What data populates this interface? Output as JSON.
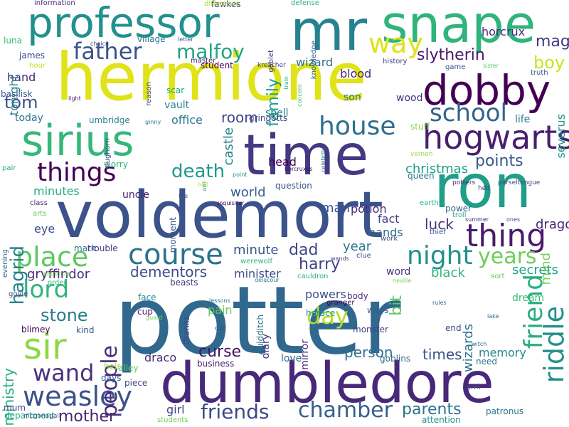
{
  "palette": {
    "background": "#ffffff"
  },
  "words": [
    {
      "text": "potter",
      "color": "#31688e"
    },
    {
      "text": "hermione",
      "color": "#dfe318"
    },
    {
      "text": "voldemort",
      "color": "#3b528b"
    },
    {
      "text": "dumbledore",
      "color": "#482878"
    },
    {
      "text": "mr",
      "color": "#26828e"
    },
    {
      "text": "snape",
      "color": "#2fb47c"
    },
    {
      "text": "ron",
      "color": "#1f9e89"
    },
    {
      "text": "time",
      "color": "#443983"
    },
    {
      "text": "professor",
      "color": "#21918c"
    },
    {
      "text": "sirius",
      "color": "#35b779"
    },
    {
      "text": "dobby",
      "color": "#440154"
    },
    {
      "text": "hogwarts",
      "color": "#481f70"
    },
    {
      "text": "sir",
      "color": "#8fd744"
    },
    {
      "text": "course",
      "color": "#2c728e"
    },
    {
      "text": "things",
      "color": "#440154"
    },
    {
      "text": "place",
      "color": "#5ec962"
    },
    {
      "text": "night",
      "color": "#21918c"
    },
    {
      "text": "thing",
      "color": "#481a6c"
    },
    {
      "text": "weasley",
      "color": "#3b528b"
    },
    {
      "text": "wand",
      "color": "#46327e"
    },
    {
      "text": "house",
      "color": "#2e6f8e"
    },
    {
      "text": "school",
      "color": "#33638d"
    },
    {
      "text": "riddle",
      "color": "#21918c"
    },
    {
      "text": "friend",
      "color": "#29af7f"
    },
    {
      "text": "lord",
      "color": "#2fb47c"
    },
    {
      "text": "father",
      "color": "#3b528b"
    },
    {
      "text": "way",
      "color": "#dfe318"
    },
    {
      "text": "chamber",
      "color": "#355f8d"
    },
    {
      "text": "friends",
      "color": "#3e4989"
    },
    {
      "text": "people",
      "color": "#472c7a"
    },
    {
      "text": "day",
      "color": "#b5de2b"
    },
    {
      "text": "years",
      "color": "#6ece58"
    },
    {
      "text": "malfoy",
      "color": "#20a486"
    },
    {
      "text": "death",
      "color": "#1f9a8a"
    },
    {
      "text": "hagrid",
      "color": "#25838e"
    },
    {
      "text": "stone",
      "color": "#287c8e"
    },
    {
      "text": "tom",
      "color": "#3b528b"
    },
    {
      "text": "boy",
      "color": "#cde11d"
    },
    {
      "text": "dad",
      "color": "#3f4788"
    },
    {
      "text": "curse",
      "color": "#471164"
    },
    {
      "text": "parents",
      "color": "#2c728e"
    },
    {
      "text": "mother",
      "color": "#482173"
    },
    {
      "text": "slytherin",
      "color": "#48186a"
    },
    {
      "text": "points",
      "color": "#38598c"
    },
    {
      "text": "magic",
      "color": "#453781"
    },
    {
      "text": "harry",
      "color": "#424086"
    },
    {
      "text": "family",
      "color": "#1f9e89"
    },
    {
      "text": "room",
      "color": "#414487"
    },
    {
      "text": "times",
      "color": "#3b528b"
    },
    {
      "text": "bit",
      "color": "#5ec962"
    },
    {
      "text": "person",
      "color": "#2d708e"
    },
    {
      "text": "dementors",
      "color": "#3e4c8a"
    },
    {
      "text": "luck",
      "color": "#46337f"
    },
    {
      "text": "ministry",
      "color": "#27ad81"
    },
    {
      "text": "christmas",
      "color": "#1fa088"
    },
    {
      "text": "wizards",
      "color": "#2c738e"
    },
    {
      "text": "dragon",
      "color": "#482475"
    },
    {
      "text": "man",
      "color": "#39558c"
    },
    {
      "text": "year",
      "color": "#2a788e"
    },
    {
      "text": "minute",
      "color": "#3a548c"
    },
    {
      "text": "gryffindor",
      "color": "#472d7b"
    },
    {
      "text": "world",
      "color": "#34618d"
    },
    {
      "text": "castle",
      "color": "#25848e"
    },
    {
      "text": "mind",
      "color": "#7ad151"
    },
    {
      "text": "black",
      "color": "#31b57b"
    },
    {
      "text": "secrets",
      "color": "#1fa287"
    },
    {
      "text": "minutes",
      "color": "#28ae80"
    },
    {
      "text": "blood",
      "color": "#482576"
    },
    {
      "text": "fact",
      "color": "#433e85"
    },
    {
      "text": "minister",
      "color": "#3d4e8a"
    },
    {
      "text": "head",
      "color": "#440154"
    },
    {
      "text": "office",
      "color": "#2a768e"
    },
    {
      "text": "potion",
      "color": "#482979"
    },
    {
      "text": "hands",
      "color": "#31688e"
    },
    {
      "text": "pain",
      "color": "#65cb5e"
    },
    {
      "text": "memory",
      "color": "#24878e"
    },
    {
      "text": "severus",
      "color": "#1f968b"
    },
    {
      "text": "girl",
      "color": "#404588"
    },
    {
      "text": "draco",
      "color": "#472f7d"
    },
    {
      "text": "horcrux",
      "color": "#472a7a"
    },
    {
      "text": "wizard",
      "color": "#2e6e8e"
    },
    {
      "text": "hand",
      "color": "#482677"
    },
    {
      "text": "tonight",
      "color": "#25858e"
    },
    {
      "text": "eye",
      "color": "#3c4f8a"
    },
    {
      "text": "powers",
      "color": "#3d4d8a"
    },
    {
      "text": "dream",
      "color": "#3dbc74"
    },
    {
      "text": "diary",
      "color": "#453882"
    },
    {
      "text": "mirror",
      "color": "#46307e"
    },
    {
      "text": "wood",
      "color": "#46327e"
    },
    {
      "text": "son",
      "color": "#2b748e"
    },
    {
      "text": "spell",
      "color": "#27808e"
    },
    {
      "text": "today",
      "color": "#2b758e"
    },
    {
      "text": "stuff",
      "color": "#86d549"
    },
    {
      "text": "life",
      "color": "#2a788e"
    },
    {
      "text": "quidditch",
      "color": "#2c728e"
    },
    {
      "text": "uncle",
      "color": "#482071"
    },
    {
      "text": "love",
      "color": "#31688e"
    },
    {
      "text": "word",
      "color": "#472e7c"
    },
    {
      "text": "vault",
      "color": "#26818e"
    },
    {
      "text": "gringotts",
      "color": "#414487"
    },
    {
      "text": "scar",
      "color": "#22a785"
    },
    {
      "text": "james",
      "color": "#3f4889"
    },
    {
      "text": "luna",
      "color": "#38b977"
    },
    {
      "text": "village",
      "color": "#2b758e"
    },
    {
      "text": "umbridge",
      "color": "#26818e"
    },
    {
      "text": "question",
      "color": "#3a548c"
    },
    {
      "text": "fawkes",
      "color": "#453581"
    },
    {
      "text": "basilisk",
      "color": "#3c508b"
    },
    {
      "text": "worry",
      "color": "#2fb47c"
    },
    {
      "text": "moment",
      "color": "#39568c"
    },
    {
      "text": "mark",
      "color": "#2b758e"
    },
    {
      "text": "trouble",
      "color": "#46337f"
    },
    {
      "text": "cup",
      "color": "#481769"
    },
    {
      "text": "face",
      "color": "#24878e"
    },
    {
      "text": "kind",
      "color": "#3b528b"
    },
    {
      "text": "blimey",
      "color": "#440154"
    },
    {
      "text": "beasts",
      "color": "#453882"
    },
    {
      "text": "thanks",
      "color": "#3e4a89"
    },
    {
      "text": "monster",
      "color": "#424086"
    },
    {
      "text": "piece",
      "color": "#3f4889"
    },
    {
      "text": "heir",
      "color": "#9dd93b"
    },
    {
      "text": "alley",
      "color": "#5ec962"
    },
    {
      "text": "days",
      "color": "#33638d"
    },
    {
      "text": "business",
      "color": "#48196b"
    },
    {
      "text": "goblins",
      "color": "#2f6b8e"
    },
    {
      "text": "need",
      "color": "#2a788e"
    },
    {
      "text": "end",
      "color": "#414487"
    },
    {
      "text": "body",
      "color": "#46307e"
    },
    {
      "text": "ways",
      "color": "#38598c"
    },
    {
      "text": "horace",
      "color": "#1f9a8a"
    },
    {
      "text": "patronus",
      "color": "#2a788e"
    },
    {
      "text": "attention",
      "color": "#228d8d"
    },
    {
      "text": "work",
      "color": "#3b528b"
    },
    {
      "text": "earth",
      "color": "#37b878"
    },
    {
      "text": "queen",
      "color": "#2a788e"
    },
    {
      "text": "power",
      "color": "#32648e"
    },
    {
      "text": "troll",
      "color": "#29af7f"
    },
    {
      "text": "thief",
      "color": "#3b528b"
    },
    {
      "text": "department",
      "color": "#25ab82"
    },
    {
      "text": "mum",
      "color": "#404688"
    },
    {
      "text": "information",
      "color": "#482878"
    },
    {
      "text": "difference",
      "color": "#a5db36"
    },
    {
      "text": "defense",
      "color": "#2fb47c"
    },
    {
      "text": "knowledge",
      "color": "#33638d"
    },
    {
      "text": "master",
      "color": "#482173"
    },
    {
      "text": "student",
      "color": "#440154"
    },
    {
      "text": "goblet",
      "color": "#46307e"
    },
    {
      "text": "hour",
      "color": "#bddf26"
    },
    {
      "text": "history",
      "color": "#414487"
    },
    {
      "text": "kreacher",
      "color": "#3e4989"
    },
    {
      "text": "game",
      "color": "#38598c"
    },
    {
      "text": "truth",
      "color": "#39558c"
    },
    {
      "text": "sister",
      "color": "#54c568"
    },
    {
      "text": "slughorn",
      "color": "#3b528b"
    },
    {
      "text": "arts",
      "color": "#5ec962"
    },
    {
      "text": "class",
      "color": "#46337f"
    },
    {
      "text": "order",
      "color": "#37b878"
    },
    {
      "text": "evening",
      "color": "#31688e"
    },
    {
      "text": "goyle",
      "color": "#3e4a89"
    },
    {
      "text": "pair",
      "color": "#25ab82"
    },
    {
      "text": "fire",
      "color": "#3b528b"
    },
    {
      "text": "owl",
      "color": "#1fa187"
    },
    {
      "text": "bed",
      "color": "#b5de2b"
    },
    {
      "text": "inquisitor",
      "color": "#440154"
    },
    {
      "text": "point",
      "color": "#1f958b"
    },
    {
      "text": "horcruxes",
      "color": "#46085c"
    },
    {
      "text": "celebrity",
      "color": "#2d718e"
    },
    {
      "text": "concern",
      "color": "#4ac16d"
    },
    {
      "text": "train",
      "color": "#25ab82"
    },
    {
      "text": "reason",
      "color": "#3e4989"
    },
    {
      "text": "light",
      "color": "#482475"
    },
    {
      "text": "ginny",
      "color": "#287d8e"
    },
    {
      "text": "letter",
      "color": "#3b528b"
    },
    {
      "text": "choice",
      "color": "#433e85"
    },
    {
      "text": "parseltongue",
      "color": "#414487"
    },
    {
      "text": "hell",
      "color": "#46327e"
    },
    {
      "text": "potters",
      "color": "#482677"
    },
    {
      "text": "vernon",
      "color": "#90d743"
    },
    {
      "text": "summer",
      "color": "#482475"
    },
    {
      "text": "ones",
      "color": "#3f4788"
    },
    {
      "text": "clue",
      "color": "#3e4a89"
    },
    {
      "text": "wands",
      "color": "#453781"
    },
    {
      "text": "patronum",
      "color": "#7fd34e"
    },
    {
      "text": "cauldron",
      "color": "#2ab07f"
    },
    {
      "text": "delacour",
      "color": "#26828e"
    },
    {
      "text": "werewolf",
      "color": "#2fb47c"
    },
    {
      "text": "sort",
      "color": "#5ec962"
    },
    {
      "text": "neville",
      "color": "#75d054"
    },
    {
      "text": "rules",
      "color": "#2c718e"
    },
    {
      "text": "lessons",
      "color": "#2a788e"
    },
    {
      "text": "granger",
      "color": "#440154"
    },
    {
      "text": "guard",
      "color": "#73d056"
    },
    {
      "text": "car",
      "color": "#3b528b"
    },
    {
      "text": "lake",
      "color": "#2d718e"
    },
    {
      "text": "witch",
      "color": "#31688e"
    },
    {
      "text": "arm",
      "color": "#3b528b"
    },
    {
      "text": "mcgonagall",
      "color": "#3b528b"
    },
    {
      "text": "students",
      "color": "#6ece58"
    }
  ]
}
